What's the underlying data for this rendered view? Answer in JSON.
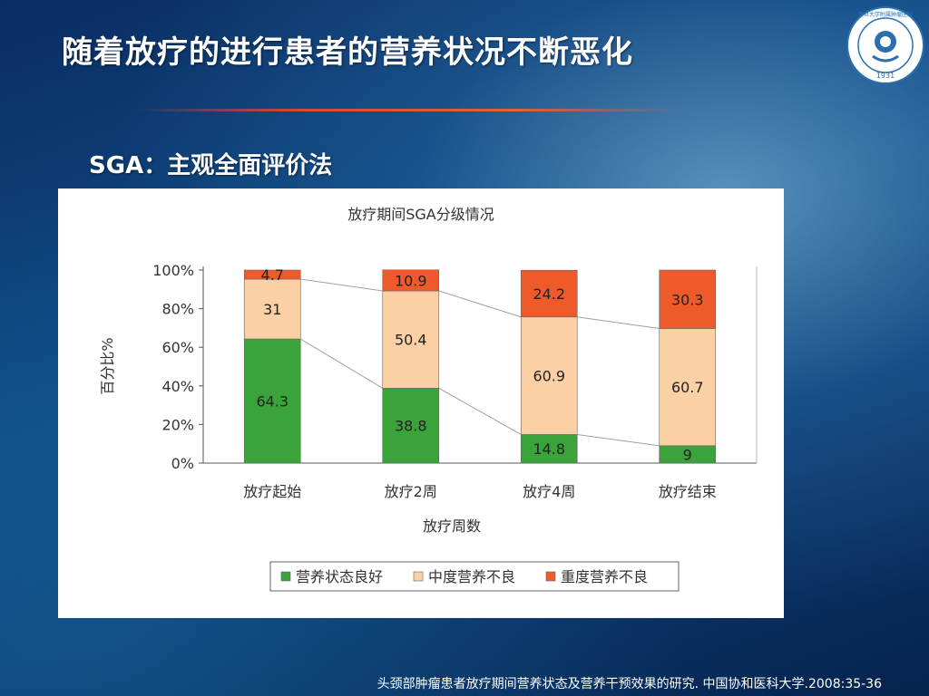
{
  "slide": {
    "title": "随着放疗的进行患者的营养状况不断恶化",
    "subtitle": "SGA：主观全面评价法",
    "citation": "头颈部肿瘤患者放疗期间营养状态及营养干预效果的研究. 中国协和医科大学.2008:35-36",
    "logo": {
      "icon": "university-seal-icon",
      "year": "1931",
      "ring_text": "复旦大学附属肿瘤医院"
    }
  },
  "colors": {
    "good": "#3aa33a",
    "moderate": "#fbd0a5",
    "severe": "#ee5a2a",
    "connector": "#a0a0a0",
    "axis": "#555555"
  },
  "chart_data": {
    "type": "bar",
    "stacked": true,
    "title": "放疗期间SGA分级情况",
    "xlabel": "放疗周数",
    "ylabel": "百分比%",
    "ylim": [
      0,
      100
    ],
    "y_ticks": [
      "0%",
      "20%",
      "40%",
      "60%",
      "80%",
      "100%"
    ],
    "categories": [
      "放疗起始",
      "放疗2周",
      "放疗4周",
      "放疗结束"
    ],
    "series": [
      {
        "name": "营养状态良好",
        "values": [
          64.3,
          38.8,
          14.8,
          9
        ]
      },
      {
        "name": "中度营养不良",
        "values": [
          31,
          50.4,
          60.9,
          60.7
        ]
      },
      {
        "name": "重度营养不良",
        "values": [
          4.7,
          10.9,
          24.2,
          30.3
        ]
      }
    ],
    "legend": "bottom",
    "grid": false
  }
}
